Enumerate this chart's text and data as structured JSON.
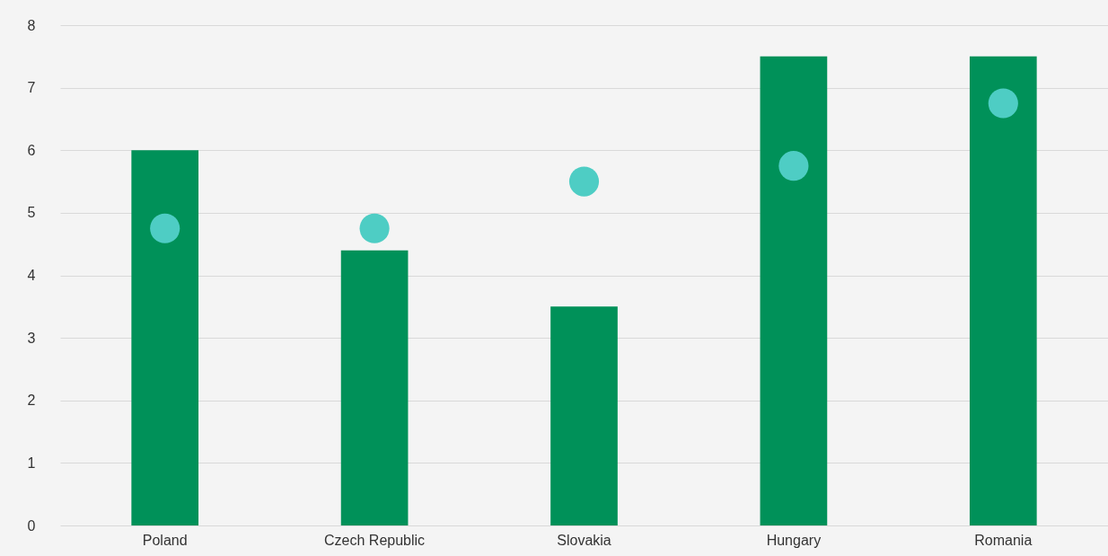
{
  "chart_data": {
    "type": "bar",
    "categories": [
      "Poland",
      "Czech Republic",
      "Slovakia",
      "Hungary",
      "Romania"
    ],
    "series": [
      {
        "color": "#009159",
        "values": [
          6.0,
          4.4,
          3.5,
          7.5,
          7.5
        ]
      },
      {
        "type": "scatter",
        "color": "#4ecdc4",
        "x": [
          "Poland",
          "Czech Republic",
          "Slovakia",
          "Hungary",
          "Romania"
        ],
        "values": [
          4.75,
          4.75,
          5.5,
          5.75,
          6.75
        ]
      }
    ],
    "ylim": [
      0,
      8
    ],
    "yticks": [
      0,
      1,
      2,
      3,
      4,
      5,
      6,
      7,
      8
    ],
    "grid": "y",
    "marker": "circle"
  }
}
